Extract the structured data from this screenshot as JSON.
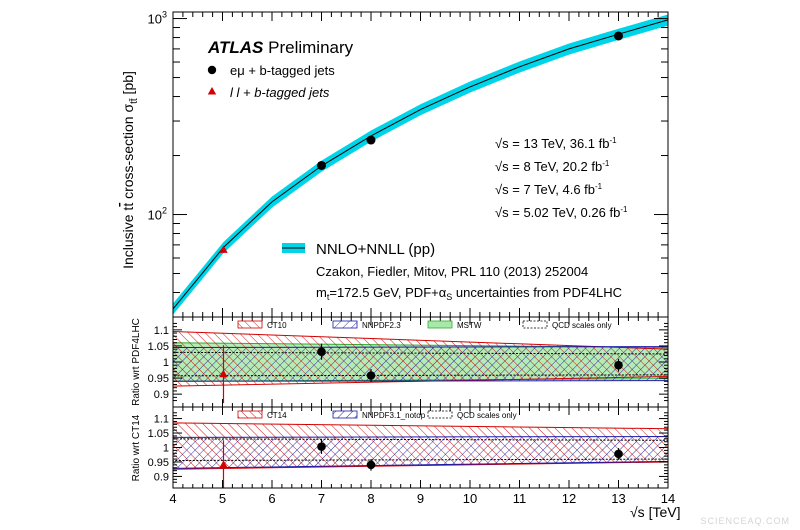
{
  "chart_data": [
    {
      "type": "scatter",
      "panel": "main",
      "experiment": "ATLAS",
      "status": "Preliminary",
      "xlabel": "",
      "ylabel": "Inclusive tt̄ cross-section σ_tt̄ [pb]",
      "ylabel_parts": {
        "main": "Inclusive t",
        "tbar": "t",
        "mid": " cross-section σ",
        "sub": "tt̄",
        "unit": " [pb]"
      },
      "xlim": [
        4,
        14
      ],
      "ylim": [
        30,
        1080
      ],
      "yscale": "log",
      "yticks": [
        {
          "value": 100,
          "base": "10",
          "exp": "2"
        },
        {
          "value": 1000,
          "base": "10",
          "exp": "3"
        }
      ],
      "series": [
        {
          "name": "eμ + b-tagged jets",
          "marker": "circle",
          "color": "#000000",
          "x": [
            7,
            8,
            13
          ],
          "y": [
            178,
            240,
            815
          ]
        },
        {
          "name": "l l + b-tagged jets",
          "marker": "triangle",
          "color": "#d40000",
          "x": [
            5.02
          ],
          "y": [
            66
          ]
        }
      ],
      "theory": {
        "name": "NNLO+NNLL (pp)",
        "color": "#00d4e8",
        "x": [
          4.0,
          4.5,
          5.02,
          6.0,
          7.0,
          8.0,
          9.0,
          10.0,
          11.0,
          12.0,
          13.0,
          14.0
        ],
        "y": [
          33,
          47,
          68,
          116,
          177,
          252,
          343,
          448,
          567,
          700,
          832,
          985
        ],
        "rel_band": 0.065
      },
      "energies": [
        {
          "label": "√s = 13 TeV, 36.1 fb",
          "exp": "-1"
        },
        {
          "label": "√s = 8 TeV, 20.2 fb",
          "exp": "-1"
        },
        {
          "label": "√s = 7 TeV, 4.6 fb",
          "exp": "-1"
        },
        {
          "label": "√s = 5.02 TeV, 0.26 fb",
          "exp": "-1"
        }
      ],
      "reference": "Czakon, Fiedler, Mitov, PRL 110 (2013) 252004",
      "uncertainties_note": "m_t=172.5 GeV, PDF+α_S uncertainties from PDF4LHC",
      "uncertainties_parts": {
        "m": "m",
        "msub": "t",
        "mid": "=172.5 GeV, PDF+α",
        "asub": "S",
        "tail": " uncertainties from PDF4LHC"
      }
    },
    {
      "type": "scatter",
      "panel": "ratio1",
      "ylabel": "Ratio wrt PDF4LHC",
      "xlim": [
        4,
        14
      ],
      "ylim": [
        0.86,
        1.14
      ],
      "yticks": [
        0.9,
        0.95,
        1,
        1.05,
        1.1
      ],
      "legend": [
        "CT10",
        "NNPDF2.3",
        "MSTW",
        "QCD scales only"
      ],
      "series": [
        {
          "name": "eμ + b-tagged jets",
          "x": [
            7,
            8,
            13
          ],
          "y": [
            1.032,
            0.958,
            0.99
          ],
          "err": [
            0.025,
            0.02,
            0.02
          ]
        },
        {
          "name": "l l + b-tagged jets",
          "x": [
            5.02
          ],
          "y": [
            0.962
          ],
          "err": [
            0.09
          ]
        }
      ],
      "bands": {
        "CT10": {
          "x": [
            4,
            14
          ],
          "up": [
            1.095,
            1.04
          ],
          "dn": [
            0.925,
            0.955
          ]
        },
        "NNPDF2.3": {
          "x": [
            4,
            14
          ],
          "up": [
            1.045,
            1.048
          ],
          "dn": [
            0.94,
            0.942
          ]
        },
        "MSTW": {
          "x": [
            4,
            14
          ],
          "up": [
            1.06,
            1.045
          ],
          "dn": [
            0.94,
            0.948
          ]
        },
        "QCD scales only": {
          "x": [
            4,
            14
          ],
          "up": [
            1.03,
            1.025
          ],
          "dn": [
            0.957,
            0.96
          ]
        }
      }
    },
    {
      "type": "scatter",
      "panel": "ratio2",
      "ylabel": "Ratio wrt CT14",
      "xlabel": "√s [TeV]",
      "xlim": [
        4,
        14
      ],
      "ylim": [
        0.86,
        1.14
      ],
      "xticks": [
        4,
        5,
        6,
        7,
        8,
        9,
        10,
        11,
        12,
        13,
        14
      ],
      "yticks": [
        0.9,
        0.95,
        1,
        1.05,
        1.1
      ],
      "legend": [
        "CT14",
        "NNPDF3.1_notop",
        "QCD scales only"
      ],
      "series": [
        {
          "name": "eμ + b-tagged jets",
          "x": [
            7,
            8,
            13
          ],
          "y": [
            1.003,
            0.94,
            0.978
          ],
          "err": [
            0.025,
            0.02,
            0.02
          ]
        },
        {
          "name": "l l + b-tagged jets",
          "x": [
            5.02
          ],
          "y": [
            0.94
          ],
          "err": [
            0.085
          ]
        }
      ],
      "bands": {
        "CT14": {
          "x": [
            4,
            14
          ],
          "up": [
            1.085,
            1.065
          ],
          "dn": [
            0.925,
            0.95
          ]
        },
        "NNPDF3.1_notop": {
          "x": [
            4,
            14
          ],
          "up": [
            1.035,
            1.038
          ],
          "dn": [
            0.928,
            0.952
          ]
        },
        "QCD scales only": {
          "x": [
            4,
            14
          ],
          "up": [
            1.03,
            1.025
          ],
          "dn": [
            0.955,
            0.96
          ]
        }
      }
    }
  ],
  "colors": {
    "cyan": "#00d4e8",
    "red": "#d40000",
    "blue": "#1a1aa8",
    "green": "#2fae2f",
    "green_fill": "#a8e8a8"
  },
  "watermark": "SCIENCEAQ.COM"
}
